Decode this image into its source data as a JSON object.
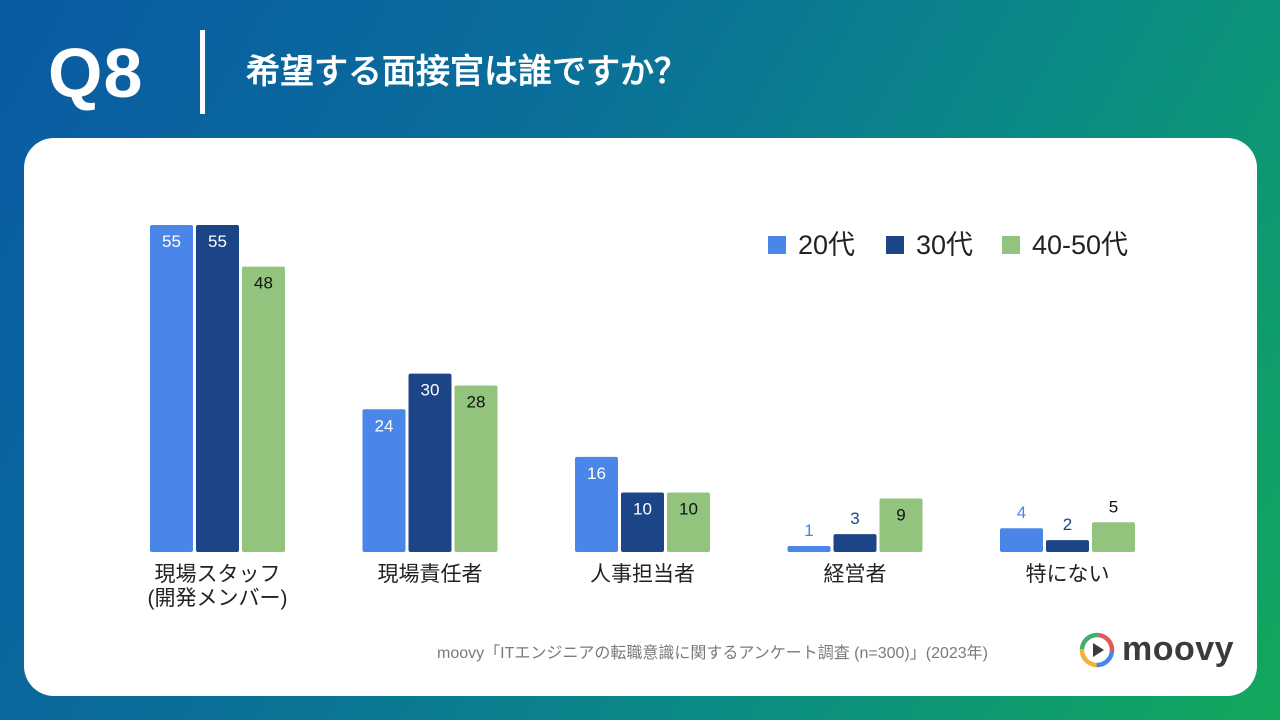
{
  "header": {
    "question": "Q8",
    "title": "希望する面接官は誰ですか？"
  },
  "chart_data": {
    "type": "bar",
    "categories": [
      "現場スタッフ\n(開発メンバー)",
      "現場責任者",
      "人事担当者",
      "経営者",
      "特にない"
    ],
    "series": [
      {
        "name": "20代",
        "values": [
          55,
          24,
          16,
          1,
          4
        ],
        "color": "#4a86e8"
      },
      {
        "name": "30代",
        "values": [
          55,
          30,
          10,
          3,
          2
        ],
        "color": "#1c4587"
      },
      {
        "name": "40-50代",
        "values": [
          48,
          28,
          10,
          9,
          5
        ],
        "color": "#93c47d"
      }
    ],
    "ylim": [
      0,
      55
    ],
    "legend": "top-right",
    "grid": false
  },
  "footer": {
    "source": "moovy「ITエンジニアの転職意識に関するアンケート調査 (n=300)」(2023年)"
  },
  "logo": {
    "name": "moovy"
  }
}
